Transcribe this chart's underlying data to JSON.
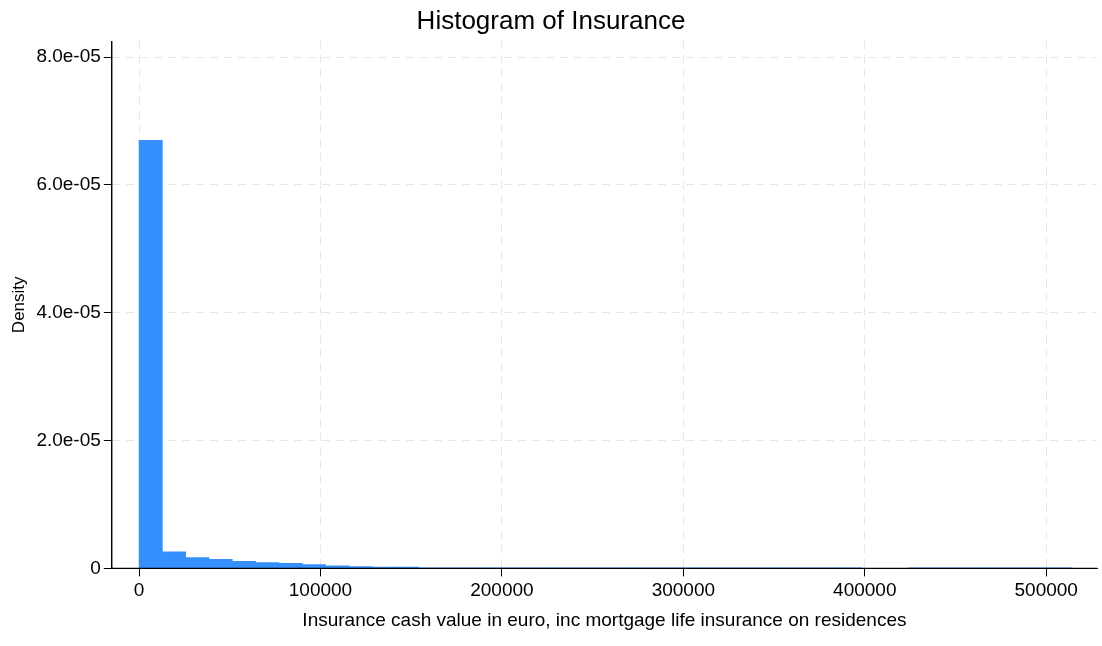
{
  "chart_data": {
    "type": "histogram",
    "title": "Histogram of Insurance",
    "xlabel": "Insurance cash value in euro, inc mortgage life insurance on residences",
    "ylabel": "Density",
    "bins": [
      0,
      12850,
      25700,
      38550,
      51400,
      64250,
      77100,
      89950,
      102800,
      115650,
      128500,
      141350,
      154200,
      167050,
      179900,
      192750,
      205600,
      218450,
      231300,
      244150,
      257000,
      269850,
      282700,
      295550,
      308400,
      321250,
      334100,
      346950,
      359800,
      372650,
      385500,
      398350,
      411200,
      424050,
      436900,
      449750,
      462600,
      475450,
      488300,
      501150,
      514000
    ],
    "values": [
      6.7e-05,
      2.6e-06,
      1.7e-06,
      1.4e-06,
      1.1e-06,
      9e-07,
      8e-07,
      6e-07,
      4e-07,
      3e-07,
      2e-07,
      2e-07,
      1e-07,
      1e-07,
      1e-07,
      1e-07,
      1e-07,
      1e-07,
      1e-07,
      1e-07,
      1e-07,
      1e-07,
      1e-07,
      1e-07,
      1e-07,
      1e-07,
      1e-07,
      1e-07,
      1e-07,
      1e-07,
      1e-07,
      0,
      0,
      1e-07,
      1e-07,
      1e-07,
      1e-07,
      1e-07,
      1e-07,
      1e-07
    ],
    "color": "#3590fe",
    "xlim": [
      -15000,
      528000
    ],
    "xticks": [
      0,
      100000,
      200000,
      300000,
      400000,
      500000
    ],
    "ylim": [
      0,
      8.25e-05
    ],
    "yticks": [
      0,
      {
        "value": 2e-05,
        "label": "2.0e-05"
      },
      {
        "value": 4e-05,
        "label": "4.0e-05"
      },
      {
        "value": 6e-05,
        "label": "6.0e-05"
      },
      {
        "value": 8e-05,
        "label": "8.0e-05"
      }
    ],
    "grid": true,
    "legend": false
  }
}
